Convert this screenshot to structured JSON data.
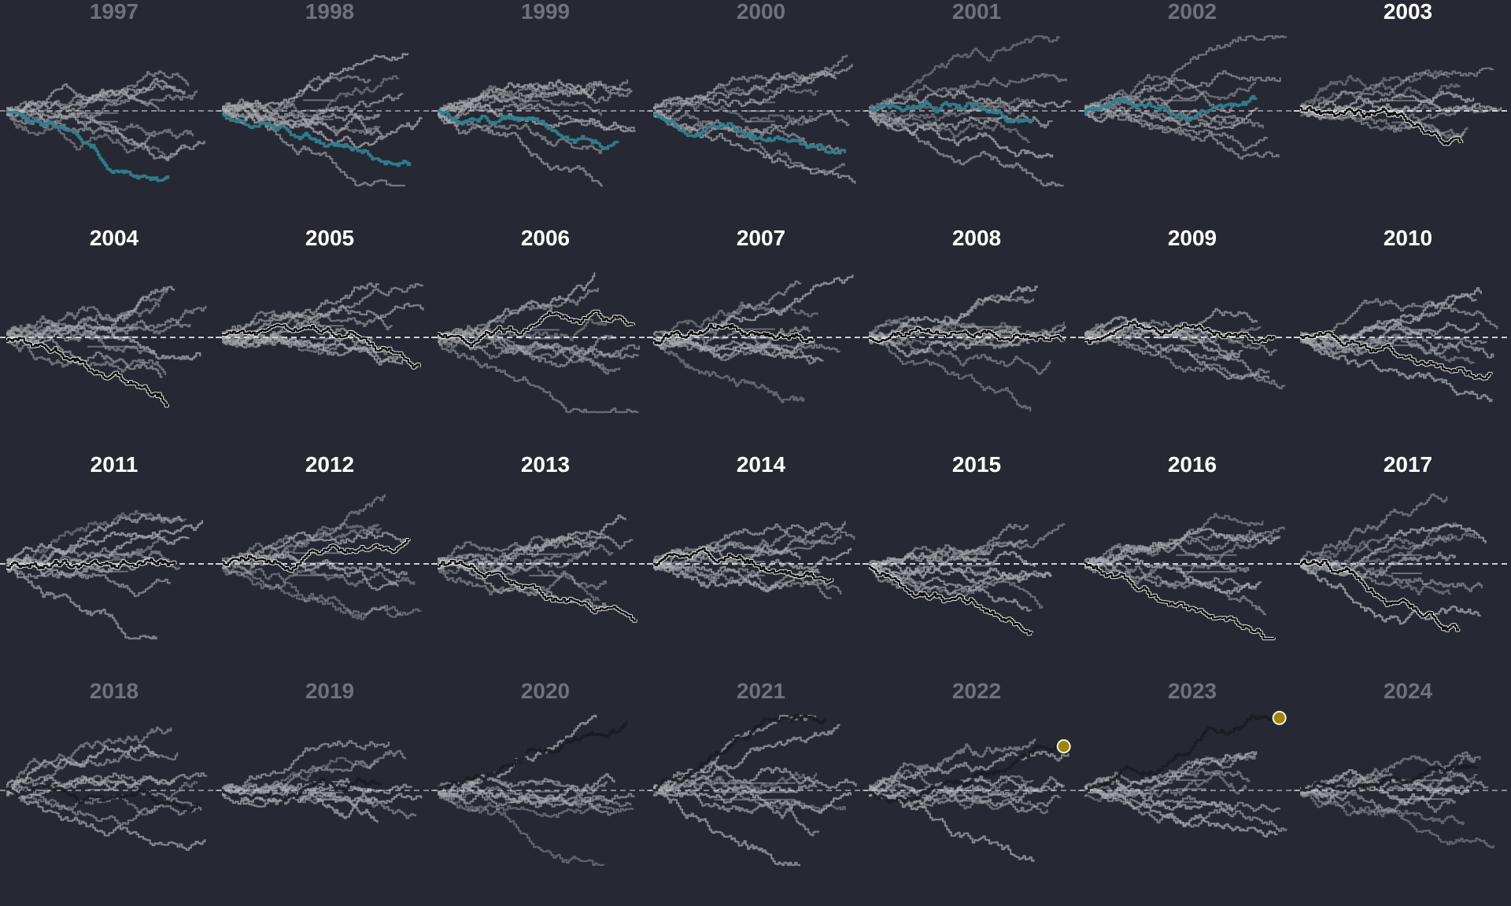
{
  "chart_data": {
    "type": "line",
    "panels": [
      {
        "year": "1997",
        "title_style": "dim",
        "highlight_style": "teal",
        "highlight_trend": -0.55,
        "gray_trends": [
          0.55,
          -0.5,
          0.35,
          0.2,
          -0.3,
          0.1,
          -0.15,
          0.4,
          -0.05
        ],
        "bracketed_from": 0.35,
        "bracketed_to": 0.55
      },
      {
        "year": "1998",
        "title_style": "dim",
        "highlight_style": "teal",
        "highlight_trend": -0.45,
        "gray_trends": [
          0.75,
          -0.95,
          0.5,
          0.25,
          -0.3,
          0.1,
          -0.15,
          0.35,
          0.0
        ],
        "bracketed_from": 0.4,
        "bracketed_to": 0.55
      },
      {
        "year": "1999",
        "title_style": "dim",
        "highlight_style": "teal",
        "highlight_trend": -0.2,
        "gray_trends": [
          0.6,
          -0.7,
          0.45,
          0.2,
          -0.35,
          0.05,
          -0.2,
          0.3,
          -0.05
        ],
        "bracketed_from": 0.4,
        "bracketed_to": 0.5
      },
      {
        "year": "2000",
        "title_style": "dim",
        "highlight_style": "teal",
        "highlight_trend": -0.1,
        "gray_trends": [
          0.7,
          -0.9,
          0.55,
          0.25,
          -0.4,
          0.1,
          -0.25,
          0.35,
          -0.6
        ],
        "bracketed_from": 0.45,
        "bracketed_to": 0.6
      },
      {
        "year": "2001",
        "title_style": "dim",
        "highlight_style": "teal",
        "highlight_trend": 0.05,
        "gray_trends": [
          0.6,
          -0.55,
          0.4,
          0.2,
          -0.35,
          0.05,
          -0.15,
          0.3,
          -0.45
        ],
        "bracketed_from": 0.5,
        "bracketed_to": 0.65
      },
      {
        "year": "2002",
        "title_style": "dim",
        "highlight_style": "teal",
        "highlight_trend": 0.3,
        "gray_trends": [
          0.6,
          -0.6,
          0.45,
          0.15,
          -0.4,
          0.05,
          -0.2,
          0.3,
          -0.25
        ],
        "bracketed_from": 0.4,
        "bracketed_to": 0.55
      },
      {
        "year": "2003",
        "title_style": "bright",
        "highlight_style": "black",
        "highlight_trend": -0.4,
        "gray_trends": [
          0.55,
          -0.45,
          0.4,
          0.2,
          -0.3,
          0.05,
          -0.15,
          0.35,
          -0.05
        ],
        "bracketed_from": 0.45,
        "bracketed_to": 0.6
      },
      {
        "year": "2004",
        "title_style": "bright",
        "highlight_style": "black",
        "highlight_trend": -0.55,
        "gray_trends": [
          0.45,
          -0.4,
          0.35,
          0.15,
          -0.25,
          0.05,
          -0.1,
          0.3,
          0.0
        ],
        "bracketed_from": 0.4,
        "bracketed_to": 0.65
      },
      {
        "year": "2005",
        "title_style": "bright",
        "highlight_style": "black",
        "highlight_trend": -0.6,
        "gray_trends": [
          0.65,
          -0.45,
          0.45,
          0.2,
          -0.3,
          0.05,
          -0.15,
          0.35,
          0.0
        ],
        "bracketed_from": 0.45,
        "bracketed_to": 0.6
      },
      {
        "year": "2006",
        "title_style": "bright",
        "highlight_style": "black",
        "highlight_trend": -0.3,
        "gray_trends": [
          0.7,
          -0.9,
          0.5,
          0.25,
          -0.35,
          0.1,
          -0.2,
          0.4,
          -0.05
        ],
        "bracketed_from": 0.45,
        "bracketed_to": 0.6
      },
      {
        "year": "2007",
        "title_style": "bright",
        "highlight_style": "black",
        "highlight_trend": 0.05,
        "gray_trends": [
          0.6,
          -0.5,
          0.45,
          0.25,
          -0.35,
          0.05,
          -0.2,
          0.35,
          -0.1
        ],
        "bracketed_from": 0.45,
        "bracketed_to": 0.6
      },
      {
        "year": "2008",
        "title_style": "bright",
        "highlight_style": "black",
        "highlight_trend": 0.35,
        "gray_trends": [
          0.5,
          -1.0,
          0.35,
          0.15,
          -0.45,
          0.05,
          -0.2,
          0.25,
          -0.1
        ],
        "bracketed_from": 0.45,
        "bracketed_to": 0.75
      },
      {
        "year": "2009",
        "title_style": "bright",
        "highlight_style": "black",
        "highlight_trend": -0.1,
        "gray_trends": [
          0.35,
          -0.45,
          0.25,
          0.1,
          -0.2,
          0.05,
          -0.1,
          0.2,
          -0.05
        ],
        "bracketed_from": 0.45,
        "bracketed_to": 0.55
      },
      {
        "year": "2010",
        "title_style": "bright",
        "highlight_style": "black",
        "highlight_trend": -0.3,
        "gray_trends": [
          0.6,
          -0.6,
          0.45,
          0.2,
          -0.35,
          0.05,
          -0.15,
          0.3,
          -0.05
        ],
        "bracketed_from": 0.45,
        "bracketed_to": 0.6
      },
      {
        "year": "2011",
        "title_style": "bright",
        "highlight_style": "black",
        "highlight_trend": 0.1,
        "gray_trends": [
          0.65,
          -0.9,
          0.45,
          0.2,
          -0.3,
          0.05,
          -0.15,
          0.35,
          0.0
        ],
        "bracketed_from": 0.45,
        "bracketed_to": 0.6
      },
      {
        "year": "2012",
        "title_style": "bright",
        "highlight_style": "black",
        "highlight_trend": 0.35,
        "gray_trends": [
          0.55,
          -0.7,
          0.4,
          0.2,
          -0.35,
          0.05,
          -0.15,
          0.3,
          -0.55
        ],
        "bracketed_from": 0.35,
        "bracketed_to": 0.6
      },
      {
        "year": "2013",
        "title_style": "bright",
        "highlight_style": "black",
        "highlight_trend": -0.35,
        "gray_trends": [
          0.7,
          -0.5,
          0.5,
          0.25,
          -0.35,
          0.05,
          -0.15,
          0.4,
          0.0
        ],
        "bracketed_from": 0.45,
        "bracketed_to": 0.6
      },
      {
        "year": "2014",
        "title_style": "bright",
        "highlight_style": "black",
        "highlight_trend": -0.05,
        "gray_trends": [
          0.6,
          -0.35,
          0.45,
          0.2,
          -0.3,
          0.05,
          -0.1,
          0.35,
          0.0
        ],
        "bracketed_from": 0.45,
        "bracketed_to": 0.55
      },
      {
        "year": "2015",
        "title_style": "bright",
        "highlight_style": "black",
        "highlight_trend": -0.65,
        "gray_trends": [
          0.5,
          -0.45,
          0.4,
          0.2,
          -0.3,
          0.05,
          -0.1,
          0.3,
          0.0
        ],
        "bracketed_from": 0.45,
        "bracketed_to": 0.6
      },
      {
        "year": "2016",
        "title_style": "bright",
        "highlight_style": "black",
        "highlight_trend": -0.7,
        "gray_trends": [
          0.55,
          -0.5,
          0.4,
          0.2,
          -0.35,
          0.05,
          -0.15,
          0.3,
          -0.05
        ],
        "bracketed_from": 0.45,
        "bracketed_to": 0.75
      },
      {
        "year": "2017",
        "title_style": "bright",
        "highlight_style": "black",
        "highlight_trend": -0.65,
        "gray_trends": [
          0.85,
          -0.6,
          0.45,
          0.2,
          -0.35,
          0.05,
          -0.15,
          0.35,
          -0.05
        ],
        "bracketed_from": 0.45,
        "bracketed_to": 0.6
      },
      {
        "year": "2018",
        "title_style": "dim",
        "highlight_style": "dark",
        "highlight_trend": -0.25,
        "gray_trends": [
          0.6,
          -0.6,
          0.45,
          0.2,
          -0.3,
          0.05,
          -0.15,
          0.35,
          -0.05
        ],
        "bracketed_from": 0.4,
        "bracketed_to": 0.55
      },
      {
        "year": "2019",
        "title_style": "dim",
        "highlight_style": "dark",
        "highlight_trend": 0.3,
        "gray_trends": [
          0.6,
          -0.6,
          0.45,
          0.2,
          -0.35,
          0.05,
          -0.15,
          0.35,
          -0.05
        ],
        "bracketed_from": 0.45,
        "bracketed_to": 0.6
      },
      {
        "year": "2020",
        "title_style": "dim",
        "highlight_style": "dark",
        "highlight_trend": 0.55,
        "gray_trends": [
          0.75,
          -0.9,
          0.5,
          0.25,
          -0.35,
          0.05,
          -0.2,
          0.35,
          -0.05
        ],
        "bracketed_from": 0.45,
        "bracketed_to": 0.6
      },
      {
        "year": "2021",
        "title_style": "dim",
        "highlight_style": "dark",
        "highlight_trend": 0.7,
        "gray_trends": [
          0.6,
          -0.6,
          0.45,
          0.2,
          -0.35,
          0.05,
          -0.15,
          0.3,
          -0.05
        ],
        "bracketed_from": 0.3,
        "bracketed_to": 0.7
      },
      {
        "year": "2022",
        "title_style": "dim",
        "highlight_style": "dark",
        "highlight_trend": 0.75,
        "gray_trends": [
          0.6,
          -1.0,
          0.45,
          0.2,
          -0.35,
          0.05,
          -0.15,
          0.3,
          -0.05
        ],
        "bracketed_from": 0.45,
        "bracketed_to": 0.6,
        "end_marker": true
      },
      {
        "year": "2023",
        "title_style": "dim",
        "highlight_style": "dark",
        "highlight_trend": 0.95,
        "gray_trends": [
          0.5,
          -0.6,
          0.4,
          0.2,
          -0.35,
          0.05,
          -0.15,
          0.3,
          -0.05
        ],
        "bracketed_from": 0.45,
        "bracketed_to": 0.6,
        "end_marker": true
      },
      {
        "year": "2024",
        "title_style": "dim",
        "highlight_style": "dark",
        "highlight_trend": 0.6,
        "gray_trends": [
          0.7,
          -0.5,
          0.45,
          0.2,
          -0.35,
          0.05,
          -0.15,
          0.3,
          -0.05
        ],
        "bracketed_from": 0.45,
        "bracketed_to": 0.75
      }
    ],
    "baseline": 0,
    "colors": {
      "background": "#262833",
      "title_bright": "#ffffff",
      "title_dim": "#6f717c",
      "gray_line": "#a6a8ae",
      "teal": "#2f7f8e",
      "highlight_black": "#0b0b0e",
      "highlight_outline": "#f2f2f2",
      "dark_line": "#1b1c22",
      "baseline": "#d6d6da",
      "end_marker_fill": "#9b8412",
      "end_marker_stroke": "#f4f0dc"
    }
  }
}
